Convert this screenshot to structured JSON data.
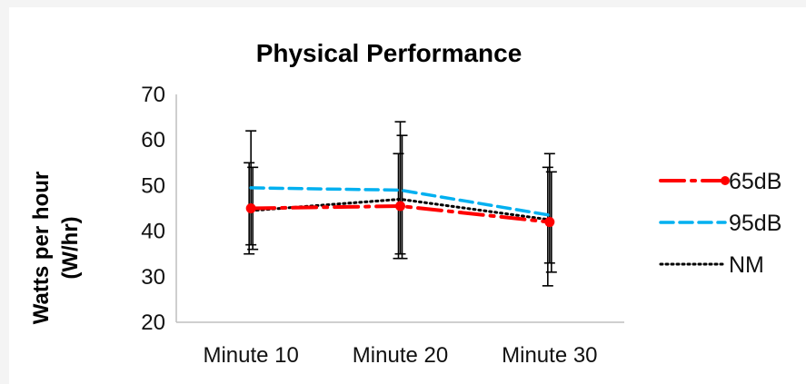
{
  "chart_data": {
    "type": "line",
    "title": "Physical Performance",
    "xlabel": "",
    "ylabel_line1": "Watts per hour",
    "ylabel_line2": "(W/hr)",
    "categories": [
      "Minute 10",
      "Minute 20",
      "Minute 30"
    ],
    "ylim": [
      20,
      70
    ],
    "yticks": [
      20,
      30,
      40,
      50,
      60,
      70
    ],
    "grid": false,
    "legend_position": "right",
    "series": [
      {
        "name": "65dB",
        "values": [
          45,
          45.5,
          42
        ],
        "err_low": [
          35,
          34,
          28
        ],
        "err_high": [
          55,
          57,
          54
        ],
        "color": "#ff0000",
        "style": "dash-dot",
        "markers": true
      },
      {
        "name": "95dB",
        "values": [
          49.5,
          49,
          43.5
        ],
        "err_low": [
          37,
          35,
          33
        ],
        "err_high": [
          62,
          64,
          57
        ],
        "color": "#00b0f0",
        "style": "dash",
        "markers": false
      },
      {
        "name": "NM",
        "values": [
          44.5,
          47,
          42.5
        ],
        "err_low": [
          36,
          34,
          31
        ],
        "err_high": [
          54,
          61,
          53
        ],
        "color": "#000000",
        "style": "dot",
        "markers": false
      }
    ]
  }
}
